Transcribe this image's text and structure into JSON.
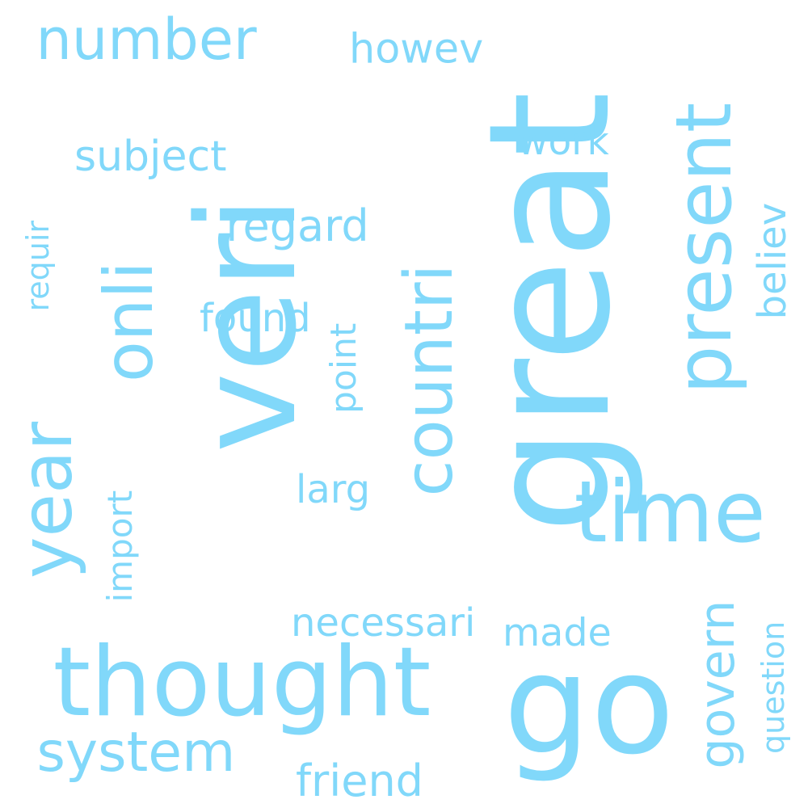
{
  "color": "#81D8FA",
  "words": [
    {
      "id": "veri",
      "text": "veri",
      "rotated": true
    },
    {
      "id": "great",
      "text": "great",
      "rotated": true
    },
    {
      "id": "go",
      "text": "go",
      "rotated": false
    },
    {
      "id": "thought",
      "text": "thought",
      "rotated": false
    },
    {
      "id": "countri",
      "text": "countri",
      "rotated": true
    },
    {
      "id": "time",
      "text": "time",
      "rotated": false
    },
    {
      "id": "year",
      "text": "year",
      "rotated": true
    },
    {
      "id": "present",
      "text": "present",
      "rotated": true
    },
    {
      "id": "onli",
      "text": "onli",
      "rotated": true
    },
    {
      "id": "number",
      "text": "number",
      "rotated": false
    },
    {
      "id": "system",
      "text": "system",
      "rotated": false
    },
    {
      "id": "believ",
      "text": "believ",
      "rotated": true
    },
    {
      "id": "govern",
      "text": "govern",
      "rotated": true
    },
    {
      "id": "question",
      "text": "question",
      "rotated": true
    },
    {
      "id": "subject",
      "text": "subject",
      "rotated": false
    },
    {
      "id": "regard",
      "text": "regard",
      "rotated": false
    },
    {
      "id": "found",
      "text": "found",
      "rotated": false
    },
    {
      "id": "point",
      "text": "point",
      "rotated": true
    },
    {
      "id": "friend",
      "text": "friend",
      "rotated": false
    },
    {
      "id": "made",
      "text": "made",
      "rotated": false
    },
    {
      "id": "necessari",
      "text": "necessari",
      "rotated": false
    },
    {
      "id": "requir",
      "text": "requir",
      "rotated": true
    },
    {
      "id": "import",
      "text": "import",
      "rotated": true
    },
    {
      "id": "howev",
      "text": "howev",
      "rotated": false
    },
    {
      "id": "work",
      "text": "work",
      "rotated": false
    },
    {
      "id": "larg",
      "text": "larg",
      "rotated": false
    }
  ]
}
